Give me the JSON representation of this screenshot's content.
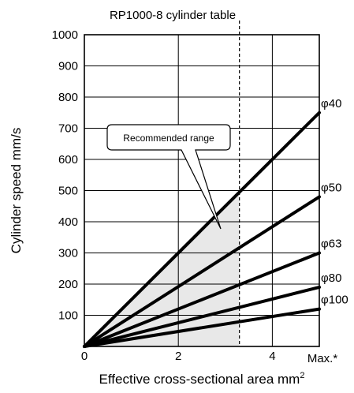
{
  "chart_data": {
    "type": "line",
    "title": "RP1000-8 cylinder table",
    "xlabel": "Effective cross-sectional area mm",
    "xlabel_superscript": "2",
    "ylabel": "Cylinder speed mm/s",
    "x_ticks": [
      "0",
      "2",
      "4"
    ],
    "x_max_label": "Max.*",
    "y_ticks": [
      "100",
      "200",
      "300",
      "400",
      "500",
      "600",
      "700",
      "800",
      "900",
      "1000"
    ],
    "xlim": [
      0,
      5
    ],
    "ylim": [
      0,
      1000
    ],
    "max_line_x": 3.3,
    "grid": true,
    "series": [
      {
        "name": "φ40",
        "x": [
          0,
          5
        ],
        "y": [
          0,
          750
        ]
      },
      {
        "name": "φ50",
        "x": [
          0,
          5
        ],
        "y": [
          0,
          480
        ]
      },
      {
        "name": "φ63",
        "x": [
          0,
          5
        ],
        "y": [
          0,
          300
        ]
      },
      {
        "name": "φ80",
        "x": [
          0,
          5
        ],
        "y": [
          0,
          190
        ]
      },
      {
        "name": "φ100",
        "x": [
          0,
          5
        ],
        "y": [
          0,
          120
        ]
      }
    ],
    "annotation": {
      "text": "Recommended range",
      "region": "between φ40 and x-axis, left of the Max. line"
    }
  }
}
